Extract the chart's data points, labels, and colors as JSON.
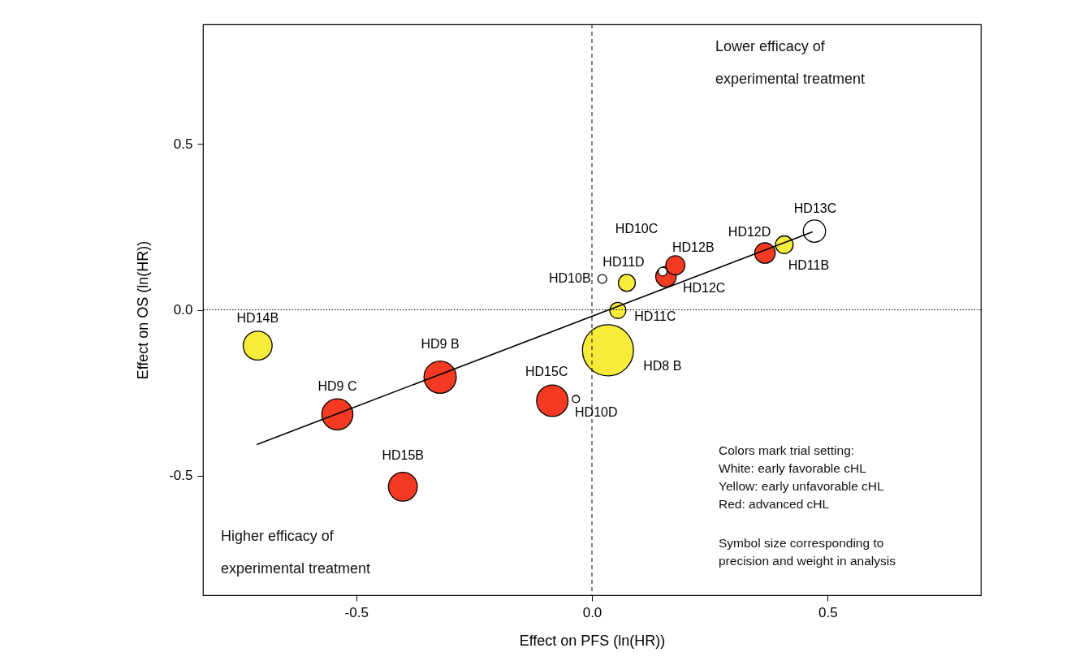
{
  "chart_data": {
    "type": "bubble",
    "xlabel": "Effect on PFS (ln(HR))",
    "ylabel": "Effect on OS (ln(HR))",
    "xlim": [
      -0.825,
      0.825
    ],
    "ylim": [
      -0.86,
      0.86
    ],
    "xticks": [
      -0.5,
      {
        "value": 0,
        "label": "0.0"
      },
      0.5
    ],
    "yticks": [
      -0.5,
      {
        "value": 0,
        "label": "0.0"
      },
      0.5
    ],
    "grid": false,
    "series": [
      {
        "x": [
          -0.709,
          -0.54,
          -0.322,
          -0.401,
          -0.084,
          -0.034,
          0.034,
          0.055,
          0.022,
          0.074,
          0.157,
          0.177,
          0.15,
          0.367,
          0.408,
          0.472
        ],
        "values": [
          -0.108,
          -0.315,
          -0.203,
          -0.533,
          -0.274,
          -0.269,
          -0.122,
          -0.002,
          0.093,
          0.081,
          0.1,
          0.134,
          0.115,
          0.171,
          0.196,
          0.237
        ],
        "sizes": [
          0.32,
          0.37,
          0.4,
          0.32,
          0.38,
          0.02,
          1,
          0.1,
          0.03,
          0.11,
          0.16,
          0.14,
          0.03,
          0.16,
          0.12,
          0.19
        ],
        "colors": [
          "#f8ec3a",
          "#f53a24",
          "#f53a24",
          "#f53a24",
          "#f53a24",
          "#ffffff",
          "#f8ec3a",
          "#f8ec3a",
          "#ffffff",
          "#f8ec3a",
          "#f53a24",
          "#f53a24",
          "#ffffff",
          "#f53a24",
          "#f8ec3a",
          "#ffffff"
        ]
      },
      {
        "type": "line",
        "x": [
          -0.711,
          0.468
        ],
        "values": [
          -0.406,
          0.235
        ],
        "color": "#000000"
      }
    ],
    "ref_lines": [
      {
        "axis": "x",
        "value": 0,
        "line_style": "dashed"
      },
      {
        "axis": "y",
        "value": 0,
        "line_style": "dotted"
      }
    ],
    "annotations": [
      {
        "text": "HD14B",
        "x": -0.709,
        "y": -0.108
      },
      {
        "text": "HD9 C",
        "x": -0.54,
        "y": -0.315
      },
      {
        "text": "HD9 B",
        "x": -0.322,
        "y": -0.203
      },
      {
        "text": "HD15B",
        "x": -0.401,
        "y": -0.533
      },
      {
        "text": "HD15C",
        "x": -0.084,
        "y": -0.274
      },
      {
        "text": "HD10D",
        "x": -0.034,
        "y": -0.269
      },
      {
        "text": "HD8 B",
        "x": 0.034,
        "y": -0.122
      },
      {
        "text": "HD11C",
        "x": 0.055,
        "y": -0.002
      },
      {
        "text": "HD10B",
        "x": 0.022,
        "y": 0.093
      },
      {
        "text": "HD11D",
        "x": 0.074,
        "y": 0.081
      },
      {
        "text": "HD12C",
        "x": 0.157,
        "y": 0.1
      },
      {
        "text": "HD12B",
        "x": 0.177,
        "y": 0.134
      },
      {
        "text": "HD10C",
        "x": 0.15,
        "y": 0.115
      },
      {
        "text": "HD12D",
        "x": 0.367,
        "y": 0.171
      },
      {
        "text": "HD11B",
        "x": 0.408,
        "y": 0.196
      },
      {
        "text": "HD13C",
        "x": 0.472,
        "y": 0.237
      },
      "Lower efficacy of\nexperimental treatment",
      "Higher efficacy of\nexperimental treatment",
      "Colors mark trial setting:\nWhite: early favorable cHL\nYellow: early unfavorable cHL\nRed: advanced cHL",
      "Symbol size corresponding to\nprecision and weight in analysis"
    ]
  }
}
